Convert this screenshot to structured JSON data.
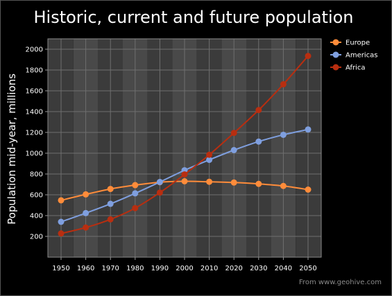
{
  "chart_data": {
    "type": "line",
    "title": "Historic, current and future population",
    "xlabel": "",
    "ylabel": "Population mid-year, millions",
    "x": [
      1950,
      1960,
      1970,
      1980,
      1990,
      2000,
      2010,
      2020,
      2030,
      2040,
      2050
    ],
    "ylim": [
      0,
      2100
    ],
    "yticks": [
      200,
      400,
      600,
      800,
      1000,
      1200,
      1400,
      1600,
      1800,
      2000
    ],
    "grid": true,
    "legend_position": "top-right",
    "series": [
      {
        "name": "Europe",
        "color": "#ff8c3a",
        "values": [
          547,
          604,
          656,
          693,
          721,
          730,
          725,
          718,
          705,
          685,
          650
        ]
      },
      {
        "name": "Americas",
        "color": "#7f9fdf",
        "values": [
          340,
          424,
          513,
          614,
          723,
          836,
          936,
          1030,
          1112,
          1177,
          1228
        ]
      },
      {
        "name": "Africa",
        "color": "#b82e10",
        "values": [
          228,
          285,
          364,
          472,
          621,
          796,
          985,
          1195,
          1415,
          1663,
          1935
        ]
      }
    ],
    "source_note": "From www.geohive.com"
  }
}
